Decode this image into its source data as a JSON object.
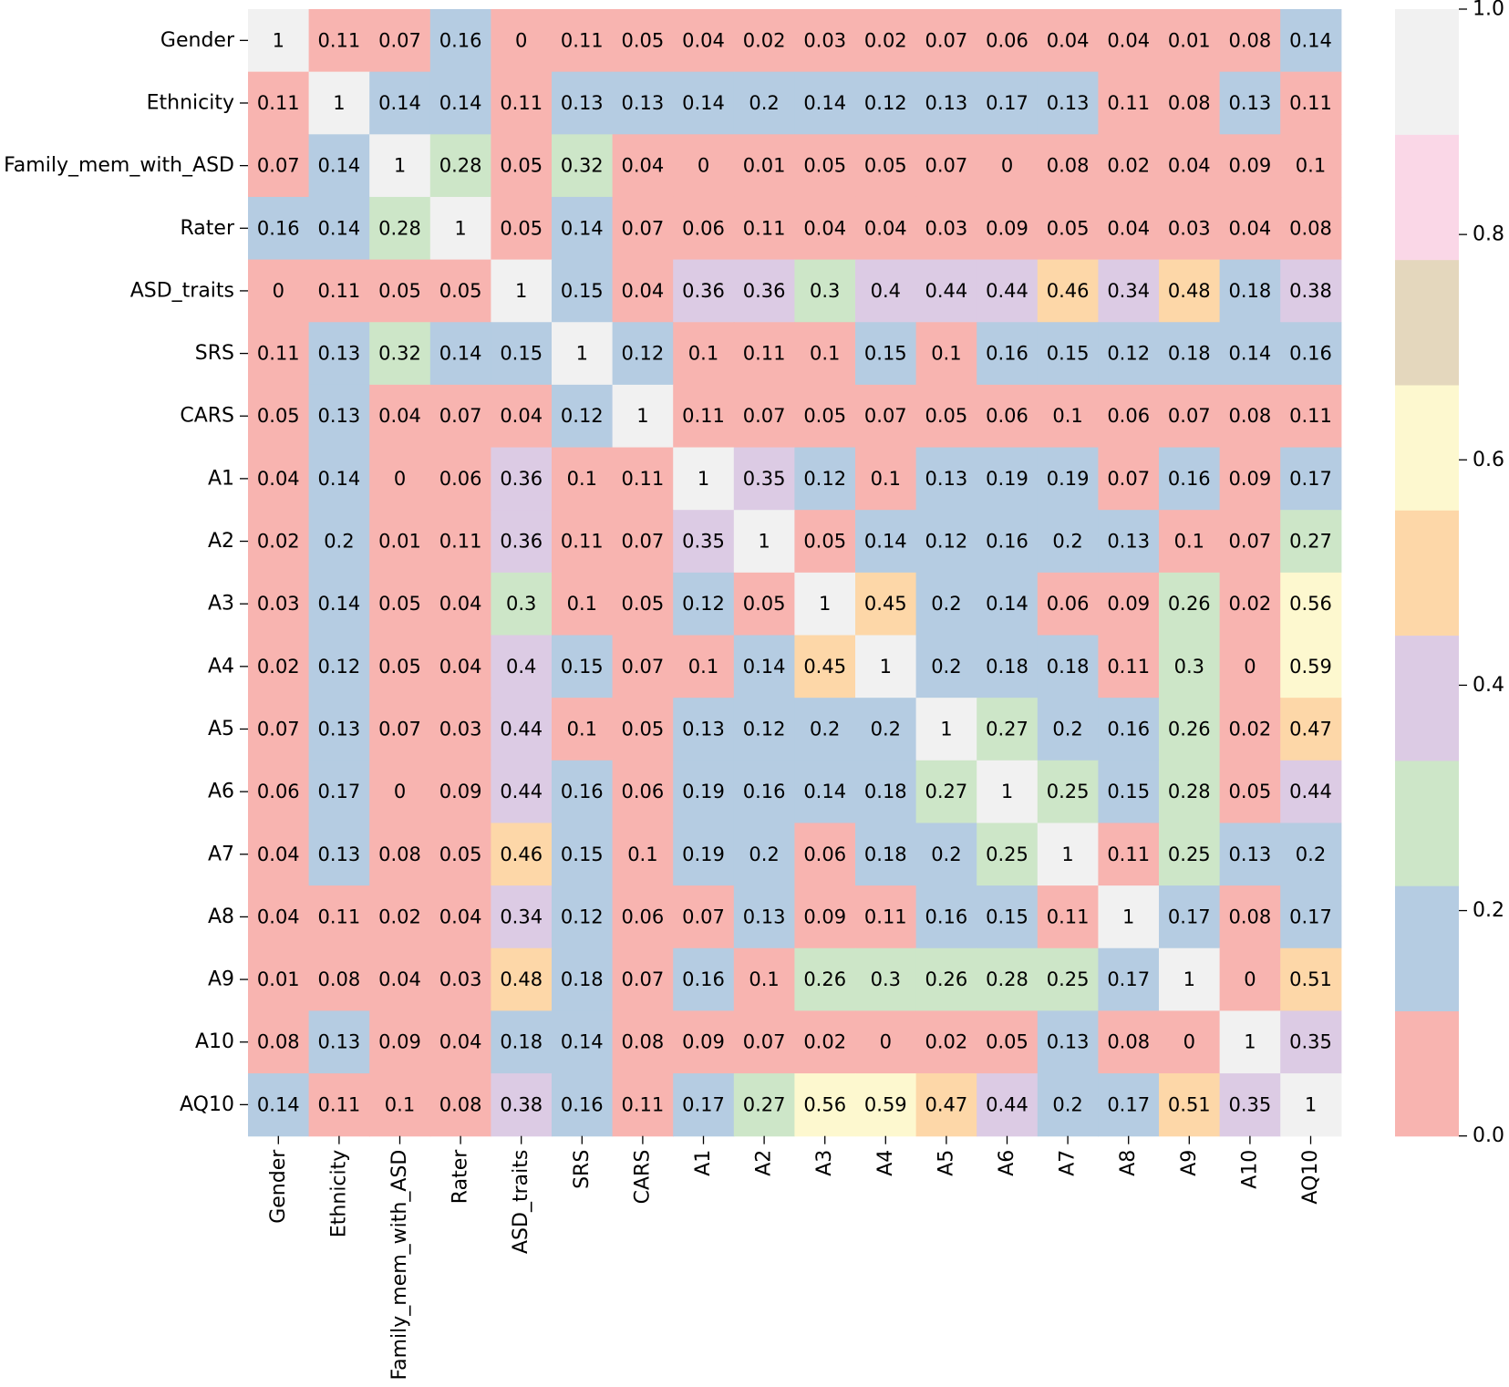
{
  "chart_data": {
    "type": "heatmap",
    "title": "",
    "labels": [
      "Gender",
      "Ethnicity",
      "Family_mem_with_ASD",
      "Rater",
      "ASD_traits",
      "SRS",
      "CARS",
      "A1",
      "A2",
      "A3",
      "A4",
      "A5",
      "A6",
      "A7",
      "A8",
      "A9",
      "A10",
      "AQ10"
    ],
    "matrix": [
      [
        1,
        0.11,
        0.07,
        0.16,
        0,
        0.11,
        0.05,
        0.04,
        0.02,
        0.03,
        0.02,
        0.07,
        0.06,
        0.04,
        0.04,
        0.01,
        0.08,
        0.14
      ],
      [
        0.11,
        1,
        0.14,
        0.14,
        0.11,
        0.13,
        0.13,
        0.14,
        0.2,
        0.14,
        0.12,
        0.13,
        0.17,
        0.13,
        0.11,
        0.08,
        0.13,
        0.11
      ],
      [
        0.07,
        0.14,
        1,
        0.28,
        0.05,
        0.32,
        0.04,
        0,
        0.01,
        0.05,
        0.05,
        0.07,
        0,
        0.08,
        0.02,
        0.04,
        0.09,
        0.1
      ],
      [
        0.16,
        0.14,
        0.28,
        1,
        0.05,
        0.14,
        0.07,
        0.06,
        0.11,
        0.04,
        0.04,
        0.03,
        0.09,
        0.05,
        0.04,
        0.03,
        0.04,
        0.08
      ],
      [
        0,
        0.11,
        0.05,
        0.05,
        1,
        0.15,
        0.04,
        0.36,
        0.36,
        0.3,
        0.4,
        0.44,
        0.44,
        0.46,
        0.34,
        0.48,
        0.18,
        0.38
      ],
      [
        0.11,
        0.13,
        0.32,
        0.14,
        0.15,
        1,
        0.12,
        0.1,
        0.11,
        0.1,
        0.15,
        0.1,
        0.16,
        0.15,
        0.12,
        0.18,
        0.14,
        0.16
      ],
      [
        0.05,
        0.13,
        0.04,
        0.07,
        0.04,
        0.12,
        1,
        0.11,
        0.07,
        0.05,
        0.07,
        0.05,
        0.06,
        0.1,
        0.06,
        0.07,
        0.08,
        0.11
      ],
      [
        0.04,
        0.14,
        0,
        0.06,
        0.36,
        0.1,
        0.11,
        1,
        0.35,
        0.12,
        0.1,
        0.13,
        0.19,
        0.19,
        0.07,
        0.16,
        0.09,
        0.17
      ],
      [
        0.02,
        0.2,
        0.01,
        0.11,
        0.36,
        0.11,
        0.07,
        0.35,
        1,
        0.05,
        0.14,
        0.12,
        0.16,
        0.2,
        0.13,
        0.1,
        0.07,
        0.27
      ],
      [
        0.03,
        0.14,
        0.05,
        0.04,
        0.3,
        0.1,
        0.05,
        0.12,
        0.05,
        1,
        0.45,
        0.2,
        0.14,
        0.06,
        0.09,
        0.26,
        0.02,
        0.56
      ],
      [
        0.02,
        0.12,
        0.05,
        0.04,
        0.4,
        0.15,
        0.07,
        0.1,
        0.14,
        0.45,
        1,
        0.2,
        0.18,
        0.18,
        0.11,
        0.3,
        0,
        0.59
      ],
      [
        0.07,
        0.13,
        0.07,
        0.03,
        0.44,
        0.1,
        0.05,
        0.13,
        0.12,
        0.2,
        0.2,
        1,
        0.27,
        0.2,
        0.16,
        0.26,
        0.02,
        0.47
      ],
      [
        0.06,
        0.17,
        0,
        0.09,
        0.44,
        0.16,
        0.06,
        0.19,
        0.16,
        0.14,
        0.18,
        0.27,
        1,
        0.25,
        0.15,
        0.28,
        0.05,
        0.44
      ],
      [
        0.04,
        0.13,
        0.08,
        0.05,
        0.46,
        0.15,
        0.1,
        0.19,
        0.2,
        0.06,
        0.18,
        0.2,
        0.25,
        1,
        0.11,
        0.25,
        0.13,
        0.2
      ],
      [
        0.04,
        0.11,
        0.02,
        0.04,
        0.34,
        0.12,
        0.06,
        0.07,
        0.13,
        0.09,
        0.11,
        0.16,
        0.15,
        0.11,
        1,
        0.17,
        0.08,
        0.17
      ],
      [
        0.01,
        0.08,
        0.04,
        0.03,
        0.48,
        0.18,
        0.07,
        0.16,
        0.1,
        0.26,
        0.3,
        0.26,
        0.28,
        0.25,
        0.17,
        1,
        0,
        0.51
      ],
      [
        0.08,
        0.13,
        0.09,
        0.04,
        0.18,
        0.14,
        0.08,
        0.09,
        0.07,
        0.02,
        0,
        0.02,
        0.05,
        0.13,
        0.08,
        0,
        1,
        0.35
      ],
      [
        0.14,
        0.11,
        0.1,
        0.08,
        0.38,
        0.16,
        0.11,
        0.17,
        0.27,
        0.56,
        0.59,
        0.47,
        0.44,
        0.2,
        0.17,
        0.51,
        0.35,
        1
      ]
    ],
    "vmin": 0,
    "vmax": 1,
    "palette": [
      "#f8b4b0",
      "#b5cce2",
      "#cde6c8",
      "#dccbe4",
      "#fdd7a8",
      "#fdf8cf",
      "#e4d7bd",
      "#fad7e7",
      "#f1f1f1"
    ],
    "colorbar": {
      "ticks": [
        0,
        0.2,
        0.4,
        0.6,
        0.8,
        1
      ],
      "tick_labels": [
        "0.0",
        "0.2",
        "0.4",
        "0.6",
        "0.8",
        "1.0"
      ]
    },
    "grid": false,
    "legend": "colorbar-right"
  }
}
